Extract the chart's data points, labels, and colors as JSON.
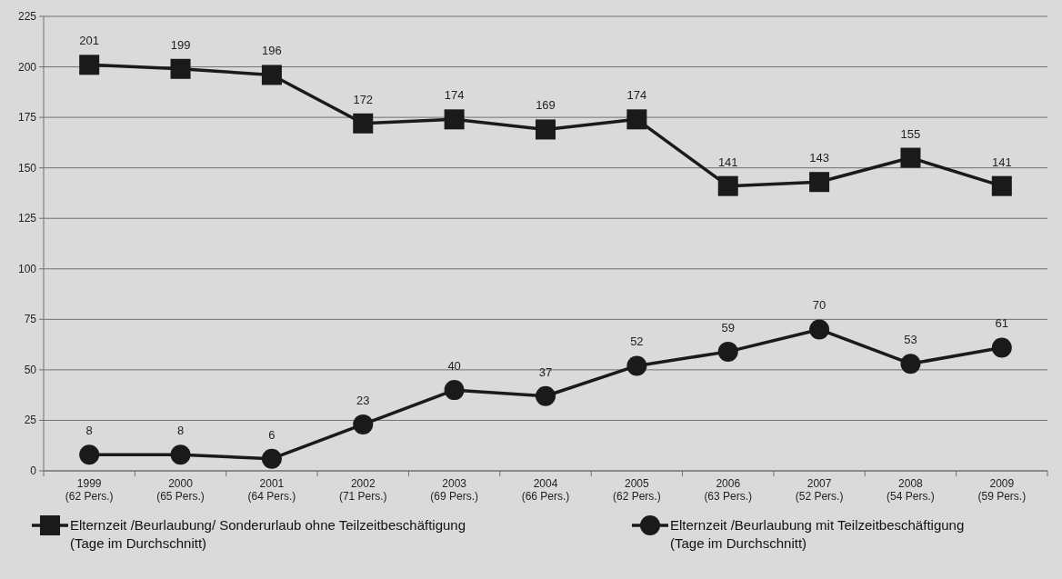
{
  "chart_data": {
    "type": "line",
    "categories": [
      "1999\n(62 Pers.)",
      "2000\n(65 Pers.)",
      "2001\n(64 Pers.)",
      "2002\n(71 Pers.)",
      "2003\n(69 Pers.)",
      "2004\n(66 Pers.)",
      "2005\n(62 Pers.)",
      "2006\n(63 Pers.)",
      "2007\n(52 Pers.)",
      "2008\n(54 Pers.)",
      "2009\n(59 Pers.)"
    ],
    "series": [
      {
        "name": "Elternzeit /Beurlaubung/ Sonderurlaub ohne Teilzeitbeschäftigung\n(Tage im Durchschnitt)",
        "color": "#1a1a1a",
        "marker": "square",
        "values": [
          201,
          199,
          196,
          172,
          174,
          169,
          174,
          141,
          143,
          155,
          141
        ]
      },
      {
        "name": "Elternzeit /Beurlaubung mit Teilzeitbeschäftigung\n(Tage im Durchschnitt)",
        "color": "#1a1a1a",
        "marker": "circle",
        "values": [
          8,
          8,
          6,
          23,
          40,
          37,
          52,
          59,
          70,
          53,
          61
        ]
      }
    ],
    "ylim": [
      0,
      225
    ],
    "yticks": [
      0,
      25,
      50,
      75,
      100,
      125,
      150,
      175,
      200,
      225
    ],
    "grid": "y",
    "legend": "bottom",
    "data_labels": true,
    "line_style": "solid"
  }
}
